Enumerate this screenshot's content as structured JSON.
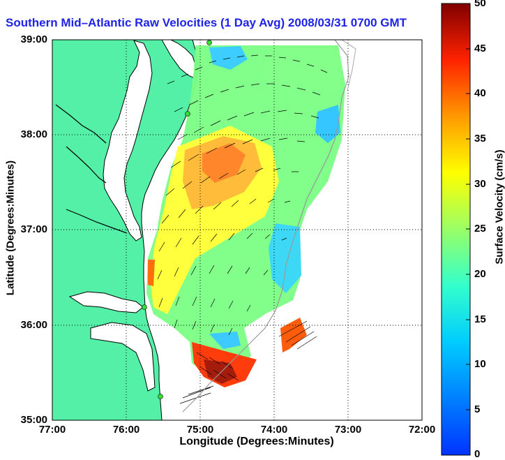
{
  "title": "Southern Mid–Atlantic Raw Velocities (1 Day Avg) 2008/03/31 0700 GMT",
  "x_axis": {
    "label": "Longitude (Degrees:Minutes)",
    "ticks": [
      "77:00",
      "76:00",
      "75:00",
      "74:00",
      "73:00",
      "72:00"
    ]
  },
  "y_axis": {
    "label": "Latitude (Degrees:Minutes)",
    "ticks": [
      "39:00",
      "38:00",
      "37:00",
      "36:00",
      "35:00"
    ]
  },
  "colorbar": {
    "label": "Surface Velocity (cm/s)",
    "ticks": [
      "50",
      "45",
      "40",
      "35",
      "30",
      "25",
      "20",
      "15",
      "10",
      "5",
      "0"
    ],
    "range": [
      0,
      50
    ],
    "colormap": "jet"
  },
  "colors": {
    "land": "#55f0a8",
    "water": "#ffffff",
    "title": "#1f23e6",
    "grid": "#000000",
    "station": "#33dd33"
  },
  "map": {
    "lon_range": [
      -77,
      -72
    ],
    "lat_range": [
      35,
      39
    ],
    "grid": "dotted"
  }
}
